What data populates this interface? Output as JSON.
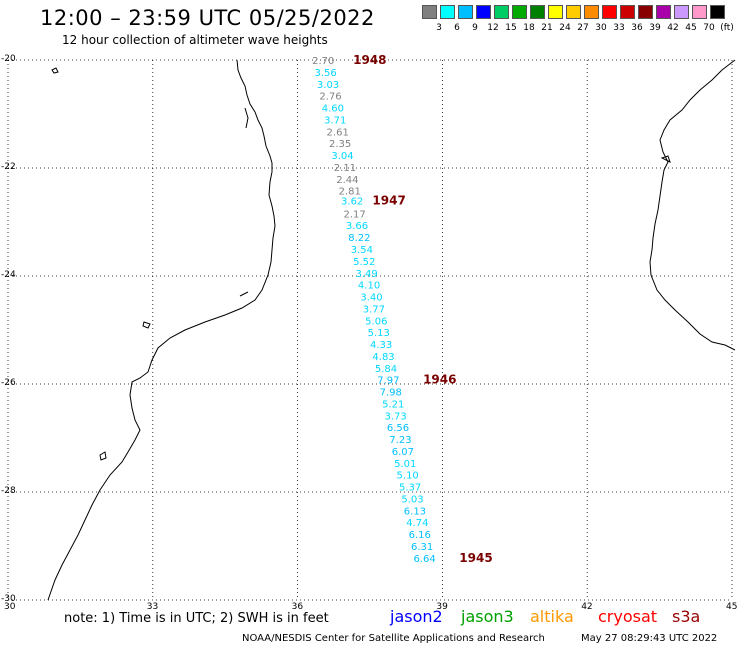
{
  "header": {
    "title": "12:00 – 23:59 UTC 05/25/2022",
    "subtitle": "12 hour collection of altimeter wave heights"
  },
  "colorscale": {
    "colors": [
      "#808080",
      "#00ffff",
      "#00bfff",
      "#0000ff",
      "#00cc66",
      "#00aa00",
      "#008000",
      "#ffff00",
      "#ffcc00",
      "#ff8c00",
      "#ff0000",
      "#cc0000",
      "#880000",
      "#aa00aa",
      "#cc99ff",
      "#ff99cc",
      "#000000"
    ],
    "labels": [
      "3",
      "6",
      "9",
      "12",
      "15",
      "18",
      "21",
      "24",
      "27",
      "30",
      "33",
      "36",
      "39",
      "42",
      "45",
      "70",
      "(ft)"
    ]
  },
  "axes": {
    "lat_labels": [
      "-20",
      "-22",
      "-24",
      "-26",
      "-28",
      "-30"
    ],
    "lat_values": [
      -20,
      -22,
      -24,
      -26,
      -28,
      -30
    ],
    "lon_labels": [
      "30",
      "33",
      "36",
      "39",
      "42",
      "45"
    ],
    "lon_values": [
      30,
      33,
      36,
      39,
      42,
      45
    ]
  },
  "track": {
    "points": [
      {
        "lon": 36.3,
        "lat": -20.0,
        "v": "2.70",
        "c": "#808080"
      },
      {
        "lon": 36.35,
        "lat": -20.22,
        "v": "3.56",
        "c": "#00d8ff"
      },
      {
        "lon": 36.4,
        "lat": -20.44,
        "v": "3.03",
        "c": "#00d8ff"
      },
      {
        "lon": 36.45,
        "lat": -20.66,
        "v": "2.76",
        "c": "#808080"
      },
      {
        "lon": 36.5,
        "lat": -20.88,
        "v": "4.60",
        "c": "#00d8ff"
      },
      {
        "lon": 36.55,
        "lat": -21.1,
        "v": "3.71",
        "c": "#00d8ff"
      },
      {
        "lon": 36.6,
        "lat": -21.32,
        "v": "2.61",
        "c": "#808080"
      },
      {
        "lon": 36.65,
        "lat": -21.54,
        "v": "2.35",
        "c": "#808080"
      },
      {
        "lon": 36.7,
        "lat": -21.76,
        "v": "3.04",
        "c": "#00d8ff"
      },
      {
        "lon": 36.75,
        "lat": -21.98,
        "v": "2.11",
        "c": "#808080"
      },
      {
        "lon": 36.8,
        "lat": -22.2,
        "v": "2.44",
        "c": "#808080"
      },
      {
        "lon": 36.85,
        "lat": -22.42,
        "v": "2.81",
        "c": "#808080"
      },
      {
        "lon": 36.9,
        "lat": -22.6,
        "v": "3.62",
        "c": "#00d8ff"
      },
      {
        "lon": 36.95,
        "lat": -22.84,
        "v": "2.17",
        "c": "#808080"
      },
      {
        "lon": 37.0,
        "lat": -23.06,
        "v": "3.66",
        "c": "#00d8ff"
      },
      {
        "lon": 37.05,
        "lat": -23.28,
        "v": "8.22",
        "c": "#00bfff"
      },
      {
        "lon": 37.1,
        "lat": -23.5,
        "v": "3.54",
        "c": "#00d8ff"
      },
      {
        "lon": 37.15,
        "lat": -23.72,
        "v": "5.52",
        "c": "#00d8ff"
      },
      {
        "lon": 37.2,
        "lat": -23.94,
        "v": "3.49",
        "c": "#00d8ff"
      },
      {
        "lon": 37.25,
        "lat": -24.16,
        "v": "4.10",
        "c": "#00d8ff"
      },
      {
        "lon": 37.3,
        "lat": -24.38,
        "v": "3.40",
        "c": "#00d8ff"
      },
      {
        "lon": 37.35,
        "lat": -24.6,
        "v": "3.77",
        "c": "#00d8ff"
      },
      {
        "lon": 37.4,
        "lat": -24.82,
        "v": "5.06",
        "c": "#00d8ff"
      },
      {
        "lon": 37.45,
        "lat": -25.04,
        "v": "5.13",
        "c": "#00d8ff"
      },
      {
        "lon": 37.5,
        "lat": -25.26,
        "v": "4.33",
        "c": "#00d8ff"
      },
      {
        "lon": 37.55,
        "lat": -25.48,
        "v": "4.83",
        "c": "#00d8ff"
      },
      {
        "lon": 37.6,
        "lat": -25.7,
        "v": "5.84",
        "c": "#00d8ff"
      },
      {
        "lon": 37.65,
        "lat": -25.92,
        "v": "7.97",
        "c": "#00bfff"
      },
      {
        "lon": 37.7,
        "lat": -26.14,
        "v": "7.98",
        "c": "#00bfff"
      },
      {
        "lon": 37.75,
        "lat": -26.36,
        "v": "5.21",
        "c": "#00d8ff"
      },
      {
        "lon": 37.8,
        "lat": -26.58,
        "v": "3.73",
        "c": "#00d8ff"
      },
      {
        "lon": 37.85,
        "lat": -26.8,
        "v": "6.56",
        "c": "#00bfff"
      },
      {
        "lon": 37.9,
        "lat": -27.02,
        "v": "7.23",
        "c": "#00bfff"
      },
      {
        "lon": 37.95,
        "lat": -27.24,
        "v": "6.07",
        "c": "#00bfff"
      },
      {
        "lon": 38.0,
        "lat": -27.46,
        "v": "5.01",
        "c": "#00d8ff"
      },
      {
        "lon": 38.05,
        "lat": -27.68,
        "v": "5.10",
        "c": "#00d8ff"
      },
      {
        "lon": 38.1,
        "lat": -27.9,
        "v": "5.37",
        "c": "#00d8ff"
      },
      {
        "lon": 38.15,
        "lat": -28.12,
        "v": "5.03",
        "c": "#00d8ff"
      },
      {
        "lon": 38.2,
        "lat": -28.34,
        "v": "6.13",
        "c": "#00bfff"
      },
      {
        "lon": 38.25,
        "lat": -28.56,
        "v": "4.74",
        "c": "#00d8ff"
      },
      {
        "lon": 38.3,
        "lat": -28.78,
        "v": "6.16",
        "c": "#00bfff"
      },
      {
        "lon": 38.35,
        "lat": -29.0,
        "v": "6.31",
        "c": "#00bfff"
      },
      {
        "lon": 38.4,
        "lat": -29.22,
        "v": "6.64",
        "c": "#00bfff"
      }
    ],
    "times": [
      {
        "lon": 37.15,
        "lat": -20.0,
        "t": "1948"
      },
      {
        "lon": 37.55,
        "lat": -22.6,
        "t": "1947"
      },
      {
        "lon": 38.6,
        "lat": -25.92,
        "t": "1946"
      },
      {
        "lon": 39.35,
        "lat": -29.22,
        "t": "1945"
      }
    ],
    "time_color": "#7a0000"
  },
  "footer": {
    "note": "note:  1) Time is in UTC;  2) SWH is in feet",
    "satellites": [
      {
        "name": "jason2",
        "color": "#0000ff"
      },
      {
        "name": "jason3",
        "color": "#00a000"
      },
      {
        "name": "altika",
        "color": "#ff9900"
      },
      {
        "name": "cryosat",
        "color": "#ff0000"
      },
      {
        "name": "s3a",
        "color": "#990000"
      }
    ],
    "credit": "NOAA/NESDIS Center for Satellite Applications and Research",
    "timestamp": "May 27 08:29:43 UTC 2022"
  }
}
